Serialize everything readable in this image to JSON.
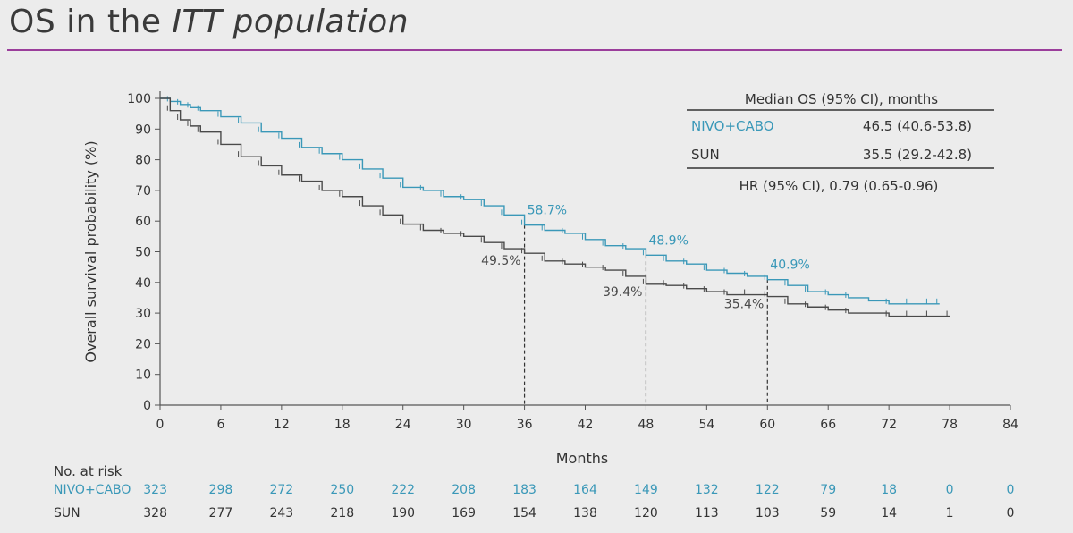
{
  "title": {
    "plain": "OS in the ",
    "italic": "ITT population"
  },
  "colors": {
    "nivo": "#3a98b8",
    "sun": "#4a4a4a",
    "rule": "#9b3e9b"
  },
  "chart_data": {
    "type": "line",
    "xlabel": "Months",
    "ylabel": "Overall survival probability (%)",
    "xlim": [
      0,
      84
    ],
    "ylim": [
      0,
      100
    ],
    "x_ticks": [
      0,
      6,
      12,
      18,
      24,
      30,
      36,
      42,
      48,
      54,
      60,
      66,
      72,
      78,
      84
    ],
    "y_ticks": [
      0,
      10,
      20,
      30,
      40,
      50,
      60,
      70,
      80,
      90,
      100
    ],
    "series": [
      {
        "name": "NIVO+CABO",
        "x": [
          0,
          1,
          2,
          3,
          4,
          6,
          8,
          10,
          12,
          14,
          16,
          18,
          20,
          22,
          24,
          26,
          28,
          30,
          32,
          34,
          36,
          38,
          40,
          42,
          44,
          46,
          48,
          50,
          52,
          54,
          56,
          58,
          60,
          62,
          64,
          66,
          68,
          70,
          72,
          74,
          76,
          77
        ],
        "y": [
          100,
          99,
          98,
          97,
          96,
          94,
          92,
          89,
          87,
          84,
          82,
          80,
          77,
          74,
          71,
          70,
          68,
          67,
          65,
          62,
          58.7,
          57,
          56,
          54,
          52,
          51,
          48.9,
          47,
          46,
          44,
          43,
          42,
          40.9,
          39,
          37,
          36,
          35,
          34,
          33,
          33,
          33,
          33
        ],
        "annotations": [
          {
            "x": 36,
            "y": 58.7,
            "text": "58.7%"
          },
          {
            "x": 48,
            "y": 48.9,
            "text": "48.9%"
          },
          {
            "x": 60,
            "y": 40.9,
            "text": "40.9%"
          }
        ]
      },
      {
        "name": "SUN",
        "x": [
          0,
          1,
          2,
          3,
          4,
          6,
          8,
          10,
          12,
          14,
          16,
          18,
          20,
          22,
          24,
          26,
          28,
          30,
          32,
          34,
          36,
          38,
          40,
          42,
          44,
          46,
          48,
          50,
          52,
          54,
          56,
          58,
          60,
          62,
          64,
          66,
          68,
          70,
          72,
          74,
          76,
          78
        ],
        "y": [
          100,
          96,
          93,
          91,
          89,
          85,
          81,
          78,
          75,
          73,
          70,
          68,
          65,
          62,
          59,
          57,
          56,
          55,
          53,
          51,
          49.5,
          47,
          46,
          45,
          44,
          42,
          39.4,
          39,
          38,
          37,
          36,
          36,
          35.4,
          33,
          32,
          31,
          30,
          30,
          29,
          29,
          29,
          29
        ],
        "annotations": [
          {
            "x": 36,
            "y": 49.5,
            "text": "49.5%"
          },
          {
            "x": 48,
            "y": 39.4,
            "text": "39.4%"
          },
          {
            "x": 60,
            "y": 35.4,
            "text": "35.4%"
          }
        ]
      }
    ],
    "reference_lines_x": [
      36,
      48,
      60
    ]
  },
  "median_table": {
    "header": "Median OS (95% CI), months",
    "rows": [
      {
        "name": "NIVO+CABO",
        "value": "46.5 (40.6-53.8)"
      },
      {
        "name": "SUN",
        "value": "35.5 (29.2-42.8)"
      }
    ],
    "hr": "HR (95% CI), 0.79 (0.65-0.96)"
  },
  "at_risk": {
    "title": "No. at risk",
    "rows": [
      {
        "name": "NIVO+CABO",
        "values": [
          "323",
          "298",
          "272",
          "250",
          "222",
          "208",
          "183",
          "164",
          "149",
          "132",
          "122",
          "79",
          "18",
          "0",
          "0"
        ]
      },
      {
        "name": "SUN",
        "values": [
          "328",
          "277",
          "243",
          "218",
          "190",
          "169",
          "154",
          "138",
          "120",
          "113",
          "103",
          "59",
          "14",
          "1",
          "0"
        ]
      }
    ]
  }
}
